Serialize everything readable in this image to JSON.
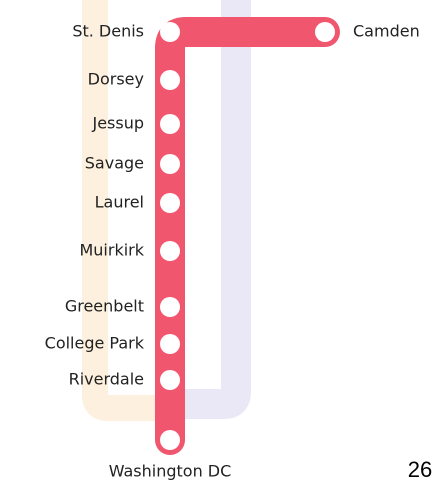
{
  "stations": [
    {
      "label": "St. Denis"
    },
    {
      "label": "Camden"
    },
    {
      "label": "Dorsey"
    },
    {
      "label": "Jessup"
    },
    {
      "label": "Savage"
    },
    {
      "label": "Laurel"
    },
    {
      "label": "Muirkirk"
    },
    {
      "label": "Greenbelt"
    },
    {
      "label": "College Park"
    },
    {
      "label": "Riverdale"
    },
    {
      "label": "Washington DC"
    }
  ],
  "page_number": "26"
}
